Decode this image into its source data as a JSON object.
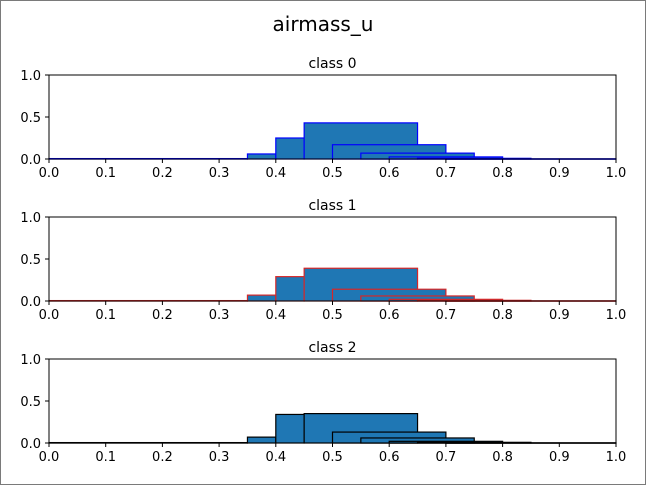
{
  "chart_data": {
    "type": "histogram-grid",
    "title": "airmass_u",
    "face_color": "#1f77b4",
    "x_ticks": [
      "0.0",
      "0.1",
      "0.2",
      "0.3",
      "0.4",
      "0.5",
      "0.6",
      "0.7",
      "0.8",
      "0.9",
      "1.0"
    ],
    "y_ticks": [
      "0.0",
      "0.5",
      "1.0"
    ],
    "xlim": [
      0,
      1
    ],
    "ylim": [
      0,
      1
    ],
    "panels": [
      {
        "title": "class 0",
        "edge_color": "#0000ff",
        "bars": [
          {
            "x0": 0.0,
            "x1": 0.35,
            "value": 0.005
          },
          {
            "x0": 0.35,
            "x1": 0.4,
            "value": 0.06
          },
          {
            "x0": 0.4,
            "x1": 0.45,
            "value": 0.25
          },
          {
            "x0": 0.45,
            "x1": 0.65,
            "value": 0.43
          },
          {
            "x0": 0.5,
            "x1": 0.7,
            "value": 0.17
          },
          {
            "x0": 0.55,
            "x1": 0.75,
            "value": 0.07
          },
          {
            "x0": 0.6,
            "x1": 0.8,
            "value": 0.025
          },
          {
            "x0": 0.65,
            "x1": 0.85,
            "value": 0.008
          },
          {
            "x0": 0.7,
            "x1": 1.0,
            "value": 0.003
          }
        ]
      },
      {
        "title": "class 1",
        "edge_color": "#d62728",
        "bars": [
          {
            "x0": 0.0,
            "x1": 0.35,
            "value": 0.005
          },
          {
            "x0": 0.35,
            "x1": 0.4,
            "value": 0.07
          },
          {
            "x0": 0.4,
            "x1": 0.45,
            "value": 0.29
          },
          {
            "x0": 0.45,
            "x1": 0.65,
            "value": 0.39
          },
          {
            "x0": 0.5,
            "x1": 0.7,
            "value": 0.14
          },
          {
            "x0": 0.55,
            "x1": 0.75,
            "value": 0.06
          },
          {
            "x0": 0.6,
            "x1": 0.8,
            "value": 0.02
          },
          {
            "x0": 0.65,
            "x1": 0.85,
            "value": 0.008
          },
          {
            "x0": 0.7,
            "x1": 1.0,
            "value": 0.003
          }
        ]
      },
      {
        "title": "class 2",
        "edge_color": "#000000",
        "bars": [
          {
            "x0": 0.0,
            "x1": 0.35,
            "value": 0.005
          },
          {
            "x0": 0.35,
            "x1": 0.4,
            "value": 0.07
          },
          {
            "x0": 0.4,
            "x1": 0.45,
            "value": 0.34
          },
          {
            "x0": 0.45,
            "x1": 0.65,
            "value": 0.35
          },
          {
            "x0": 0.5,
            "x1": 0.7,
            "value": 0.13
          },
          {
            "x0": 0.55,
            "x1": 0.75,
            "value": 0.06
          },
          {
            "x0": 0.6,
            "x1": 0.8,
            "value": 0.02
          },
          {
            "x0": 0.65,
            "x1": 0.85,
            "value": 0.008
          },
          {
            "x0": 0.7,
            "x1": 1.0,
            "value": 0.003
          }
        ]
      }
    ]
  }
}
